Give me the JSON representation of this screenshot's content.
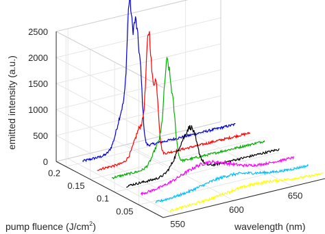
{
  "chart_data": {
    "type": "line",
    "projection": "3d-waterfall",
    "title": "",
    "xlabel": "wavelength (nm)",
    "ylabel": {
      "text": "pump fluence (J/cm",
      "superscript": "2",
      "suffix": ")"
    },
    "zlabel": "emitted intensity (a.u.)",
    "xlim": [
      540,
      680
    ],
    "ylim": [
      0,
      0.22
    ],
    "zlim": [
      0,
      2500
    ],
    "x_ticks": [
      "550",
      "600",
      "650"
    ],
    "x_tick_values": [
      550,
      600,
      650
    ],
    "y_ticks": [
      "0.05",
      "0.1",
      "0.15",
      "0.2"
    ],
    "y_tick_values": [
      0.05,
      0.1,
      0.15,
      0.2
    ],
    "z_ticks": [
      "0",
      "500",
      "1000",
      "1500",
      "2000",
      "2500"
    ],
    "z_tick_values": [
      0,
      500,
      1000,
      1500,
      2000,
      2500
    ],
    "grid": true,
    "series": [
      {
        "fluence": 0.01,
        "color": "#ffff00",
        "baseline": 30,
        "peaks": [
          [
            620,
            120,
            25
          ]
        ]
      },
      {
        "fluence": 0.04,
        "color": "#00bfff",
        "baseline": 40,
        "peaks": [
          [
            612,
            180,
            22
          ]
        ]
      },
      {
        "fluence": 0.07,
        "color": "#ff00ff",
        "baseline": 50,
        "peaks": [
          [
            605,
            300,
            20
          ]
        ]
      },
      {
        "fluence": 0.1,
        "color": "#000000",
        "baseline": 60,
        "peaks": [
          [
            600,
            600,
            8
          ],
          [
            606,
            350,
            4
          ]
        ]
      },
      {
        "fluence": 0.13,
        "color": "#00b000",
        "baseline": 70,
        "peaks": [
          [
            597,
            1500,
            2.5
          ],
          [
            602,
            900,
            2.5
          ],
          [
            592,
            500,
            6
          ]
        ]
      },
      {
        "fluence": 0.16,
        "color": "#ff0000",
        "baseline": 80,
        "peaks": [
          [
            594,
            2000,
            2.2
          ],
          [
            600,
            1300,
            2.2
          ],
          [
            588,
            650,
            6
          ]
        ]
      },
      {
        "fluence": 0.19,
        "color": "#0000cc",
        "baseline": 100,
        "peaks": [
          [
            590,
            2100,
            2.0
          ],
          [
            595,
            1900,
            2.0
          ],
          [
            599,
            1300,
            2.0
          ],
          [
            586,
            900,
            6
          ]
        ]
      }
    ]
  }
}
